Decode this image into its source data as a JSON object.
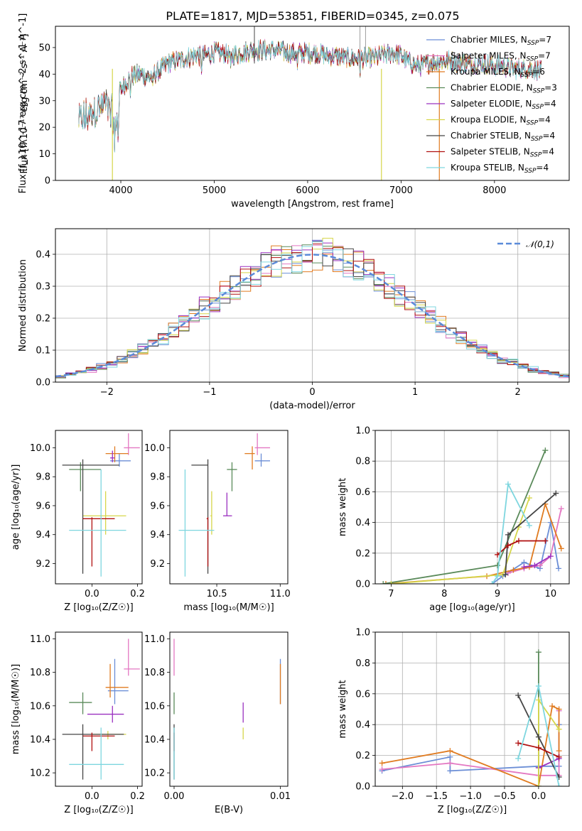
{
  "figure": {
    "title": "PLATE=1817, MJD=53851, FIBERID=0345, z=0.075"
  },
  "chart_data": [
    {
      "id": "spectrum",
      "type": "line",
      "title": "PLATE=1817, MJD=53851, FIBERID=0345, z=0.075",
      "xlabel": "wavelength [Angstrom, rest frame]",
      "ylabel": "Flux [f_λ10^-17 erg cm^-2 s^-1 A^-1]",
      "xlim": [
        3300,
        8800
      ],
      "ylim": [
        0,
        58
      ],
      "xticks": [
        4000,
        5000,
        6000,
        7000,
        8000
      ],
      "yticks": [
        0,
        10,
        20,
        30,
        40,
        50
      ],
      "legend_position": "top-right",
      "grid": false,
      "continuum": {
        "x": [
          3550,
          3650,
          3750,
          3850,
          3950,
          4000,
          4100,
          4200,
          4300,
          4400,
          4500,
          4600,
          4700,
          4800,
          4900,
          5000,
          5100,
          5200,
          5300,
          5400,
          5500,
          5600,
          5700,
          5800,
          5900,
          6000,
          6100,
          6200,
          6300,
          6400,
          6500,
          6600,
          6700,
          6800,
          6900,
          7000,
          7100,
          7200,
          7300,
          7400,
          7500,
          7600,
          7700,
          7800,
          7900,
          8000,
          8100,
          8200,
          8300,
          8400,
          8500
        ],
        "y": [
          22,
          24,
          27,
          29,
          22,
          34,
          39,
          40,
          39,
          41,
          44,
          45,
          46,
          47,
          47,
          48,
          48,
          47,
          48,
          49,
          49,
          49,
          49,
          48,
          48,
          48,
          48,
          47,
          47,
          46,
          46,
          46,
          46,
          47,
          48,
          47,
          44,
          43,
          44,
          45,
          45,
          45,
          44,
          44,
          44,
          43,
          43,
          42,
          42,
          42,
          41
        ]
      },
      "series": [
        {
          "name": "Chabrier MILES, N_SSP=7",
          "color": "#6b8ed6"
        },
        {
          "name": "Salpeter MILES, N_SSP=7",
          "color": "#e377c2"
        },
        {
          "name": "Kroupa MILES, N_SSP=6",
          "color": "#e07b20"
        },
        {
          "name": "Chabrier ELODIE, N_SSP=3",
          "color": "#5a8a5a"
        },
        {
          "name": "Salpeter ELODIE, N_SSP=4",
          "color": "#9b30c0"
        },
        {
          "name": "Kroupa ELODIE, N_SSP=4",
          "color": "#d6d64a"
        },
        {
          "name": "Chabrier STELIB, N_SSP=4",
          "color": "#454545"
        },
        {
          "name": "Salpeter STELIB, N_SSP=4",
          "color": "#b01010"
        },
        {
          "name": "Kroupa STELIB, N_SSP=4",
          "color": "#7ed6df"
        }
      ]
    },
    {
      "id": "residuals",
      "type": "line",
      "xlabel": "(data-model)/error",
      "ylabel": "Normed distribution",
      "xlim": [
        -2.5,
        2.5
      ],
      "ylim": [
        0,
        0.48
      ],
      "xticks": [
        -2,
        -1,
        0,
        1,
        2
      ],
      "yticks": [
        0.0,
        0.1,
        0.2,
        0.3,
        0.4
      ],
      "grid": true,
      "legend_position": "top-right",
      "reference_curve": {
        "name": "𝒩(0,1)",
        "mean": 0,
        "sigma": 1,
        "color": "#5b8bd9"
      },
      "histogram_bins": {
        "start": -2.5,
        "width": 0.1,
        "count": 50
      }
    },
    {
      "id": "age-vs-Z",
      "type": "scatter",
      "xlabel": "Z [log₁₀(Z/Z☉)]",
      "ylabel": "age [log₁₀(age/yr)]",
      "xlim": [
        -0.16,
        0.22
      ],
      "ylim": [
        9.06,
        10.12
      ],
      "xticks": [
        -0.2,
        0.0,
        0.2
      ],
      "yticks": [
        9.2,
        9.4,
        9.6,
        9.8,
        10.0
      ],
      "points": [
        {
          "c": "#6b8ed6",
          "x": 0.12,
          "y": 9.91,
          "xe": [
            0.08,
            0.17
          ],
          "ye": [
            9.87,
            9.96
          ]
        },
        {
          "c": "#e377c2",
          "x": 0.16,
          "y": 10.0,
          "xe": [
            0.14,
            0.21
          ],
          "ye": [
            9.95,
            10.1
          ]
        },
        {
          "c": "#e07b20",
          "x": 0.1,
          "y": 9.96,
          "xe": [
            0.06,
            0.16
          ],
          "ye": [
            9.9,
            10.01
          ]
        },
        {
          "c": "#5a8a5a",
          "x": -0.05,
          "y": 9.85,
          "xe": [
            -0.1,
            0.04
          ],
          "ye": [
            9.7,
            9.9
          ]
        },
        {
          "c": "#9b30c0",
          "x": 0.09,
          "y": 9.93,
          "xe": [
            0.08,
            0.1
          ],
          "ye": [
            9.9,
            9.98
          ]
        },
        {
          "c": "#d6d64a",
          "x": 0.06,
          "y": 9.53,
          "xe": [
            -0.04,
            0.15
          ],
          "ye": [
            9.4,
            9.7
          ]
        },
        {
          "c": "#454545",
          "x": -0.04,
          "y": 9.88,
          "xe": [
            -0.13,
            0.12
          ],
          "ye": [
            9.13,
            9.92
          ]
        },
        {
          "c": "#b01010",
          "x": 0.0,
          "y": 9.51,
          "xe": [
            -0.04,
            0.1
          ],
          "ye": [
            9.18,
            9.52
          ]
        },
        {
          "c": "#7ed6df",
          "x": 0.04,
          "y": 9.43,
          "xe": [
            -0.1,
            0.15
          ],
          "ye": [
            9.11,
            9.85
          ]
        }
      ]
    },
    {
      "id": "age-vs-mass",
      "type": "scatter",
      "xlabel": "mass [log₁₀(M/M☉)]",
      "ylabel": "",
      "xlim": [
        10.13,
        11.06
      ],
      "ylim": [
        9.06,
        10.12
      ],
      "xticks": [
        10.5,
        11.0
      ],
      "yticks": [
        9.2,
        9.4,
        9.6,
        9.8,
        10.0
      ],
      "points": [
        {
          "c": "#6b8ed6",
          "x": 10.85,
          "y": 9.91,
          "xe": [
            10.8,
            10.92
          ],
          "ye": [
            9.87,
            9.96
          ]
        },
        {
          "c": "#e377c2",
          "x": 10.82,
          "y": 10.0,
          "xe": [
            10.8,
            10.92
          ],
          "ye": [
            9.95,
            10.1
          ]
        },
        {
          "c": "#e07b20",
          "x": 10.78,
          "y": 9.96,
          "xe": [
            10.72,
            10.8
          ],
          "ye": [
            9.85,
            10.01
          ]
        },
        {
          "c": "#5a8a5a",
          "x": 10.62,
          "y": 9.85,
          "xe": [
            10.58,
            10.66
          ],
          "ye": [
            9.7,
            9.9
          ]
        },
        {
          "c": "#9b30c0",
          "x": 10.58,
          "y": 9.53,
          "xe": [
            10.55,
            10.62
          ],
          "ye": [
            9.53,
            9.69
          ]
        },
        {
          "c": "#d6d64a",
          "x": 10.46,
          "y": 9.53,
          "xe": [
            10.45,
            10.46
          ],
          "ye": [
            9.4,
            9.7
          ]
        },
        {
          "c": "#454545",
          "x": 10.43,
          "y": 9.88,
          "xe": [
            10.3,
            10.43
          ],
          "ye": [
            9.13,
            9.92
          ]
        },
        {
          "c": "#b01010",
          "x": 10.43,
          "y": 9.51,
          "xe": [
            10.42,
            10.43
          ],
          "ye": [
            9.18,
            9.52
          ]
        },
        {
          "c": "#7ed6df",
          "x": 10.25,
          "y": 9.43,
          "xe": [
            10.2,
            10.48
          ],
          "ye": [
            9.11,
            9.85
          ]
        }
      ]
    },
    {
      "id": "mass-weight-vs-age",
      "type": "line",
      "xlabel": "age [log₁₀(age/yr)]",
      "ylabel": "mass weight",
      "xlim": [
        6.7,
        10.35
      ],
      "ylim": [
        0,
        1.0
      ],
      "xticks": [
        7,
        8,
        9,
        10
      ],
      "yticks": [
        0.0,
        0.2,
        0.4,
        0.6,
        0.8,
        1.0
      ],
      "grid": true,
      "series": [
        {
          "c": "#6b8ed6",
          "x": [
            8.9,
            9.1,
            9.5,
            9.8,
            10.0,
            10.15
          ],
          "y": [
            0.0,
            0.05,
            0.14,
            0.1,
            0.4,
            0.1
          ]
        },
        {
          "c": "#e377c2",
          "x": [
            9.2,
            9.5,
            9.8,
            10.0,
            10.2
          ],
          "y": [
            0.07,
            0.1,
            0.12,
            0.18,
            0.49
          ]
        },
        {
          "c": "#e07b20",
          "x": [
            6.9,
            8.8,
            9.3,
            9.6,
            9.9,
            10.2
          ],
          "y": [
            0.0,
            0.05,
            0.09,
            0.11,
            0.52,
            0.23
          ]
        },
        {
          "c": "#5a8a5a",
          "x": [
            6.85,
            9.0,
            9.9
          ],
          "y": [
            0.0,
            0.12,
            0.87
          ]
        },
        {
          "c": "#9b30c0",
          "x": [
            9.5,
            9.7,
            10.0
          ],
          "y": [
            0.11,
            0.12,
            0.18
          ]
        },
        {
          "c": "#d6d64a",
          "x": [
            7.0,
            9.1,
            9.4,
            9.6
          ],
          "y": [
            0.0,
            0.06,
            0.37,
            0.56
          ]
        },
        {
          "c": "#454545",
          "x": [
            9.15,
            9.2,
            10.1
          ],
          "y": [
            0.06,
            0.32,
            0.59
          ]
        },
        {
          "c": "#b01010",
          "x": [
            9.0,
            9.2,
            9.4,
            9.9
          ],
          "y": [
            0.19,
            0.25,
            0.28,
            0.28
          ]
        },
        {
          "c": "#7ed6df",
          "x": [
            8.9,
            9.0,
            9.2,
            9.6
          ],
          "y": [
            0.0,
            0.05,
            0.65,
            0.38
          ]
        }
      ]
    },
    {
      "id": "mass-vs-Z",
      "type": "scatter",
      "xlabel": "Z [log₁₀(Z/Z☉)]",
      "ylabel": "mass [log₁₀(M/M☉)]",
      "xlim": [
        -0.16,
        0.22
      ],
      "ylim": [
        10.12,
        11.04
      ],
      "xticks": [
        -0.2,
        0.0,
        0.2
      ],
      "yticks": [
        10.2,
        10.4,
        10.6,
        10.8,
        11.0
      ],
      "points": [
        {
          "c": "#6b8ed6",
          "x": 0.1,
          "y": 10.69,
          "xe": [
            0.07,
            0.16
          ],
          "ye": [
            10.61,
            10.88
          ]
        },
        {
          "c": "#e377c2",
          "x": 0.16,
          "y": 10.82,
          "xe": [
            0.14,
            0.21
          ],
          "ye": [
            10.78,
            11.0
          ]
        },
        {
          "c": "#e07b20",
          "x": 0.08,
          "y": 10.71,
          "xe": [
            0.06,
            0.16
          ],
          "ye": [
            10.65,
            10.85
          ]
        },
        {
          "c": "#5a8a5a",
          "x": -0.04,
          "y": 10.62,
          "xe": [
            -0.1,
            0.0
          ],
          "ye": [
            10.55,
            10.68
          ]
        },
        {
          "c": "#9b30c0",
          "x": 0.09,
          "y": 10.55,
          "xe": [
            -0.02,
            0.14
          ],
          "ye": [
            10.5,
            10.6
          ]
        },
        {
          "c": "#d6d64a",
          "x": 0.07,
          "y": 10.43,
          "xe": [
            0.0,
            0.15
          ],
          "ye": [
            10.4,
            10.45
          ]
        },
        {
          "c": "#454545",
          "x": -0.04,
          "y": 10.43,
          "xe": [
            -0.13,
            0.14
          ],
          "ye": [
            10.16,
            10.49
          ]
        },
        {
          "c": "#b01010",
          "x": 0.0,
          "y": 10.42,
          "xe": [
            -0.04,
            0.1
          ],
          "ye": [
            10.33,
            10.44
          ]
        },
        {
          "c": "#7ed6df",
          "x": 0.04,
          "y": 10.25,
          "xe": [
            -0.1,
            0.14
          ],
          "ye": [
            10.16,
            10.47
          ]
        }
      ]
    },
    {
      "id": "mass-vs-EBV",
      "type": "scatter",
      "xlabel": "E(B-V)",
      "ylabel": "",
      "xlim": [
        -0.0004,
        0.0107
      ],
      "ylim": [
        10.12,
        11.04
      ],
      "xticks": [
        0.0,
        0.01
      ],
      "yticks": [
        10.2,
        10.4,
        10.6,
        10.8,
        11.0
      ],
      "points": [
        {
          "c": "#6b8ed6",
          "x": 0.01,
          "y": 10.7,
          "xe": [
            0.01,
            0.01
          ],
          "ye": [
            10.61,
            10.88
          ]
        },
        {
          "c": "#e377c2",
          "x": 0.0,
          "y": 10.82,
          "xe": [
            0.0,
            0.0
          ],
          "ye": [
            10.78,
            11.0
          ]
        },
        {
          "c": "#e07b20",
          "x": 0.01,
          "y": 10.7,
          "xe": [
            0.01,
            0.01
          ],
          "ye": [
            10.61,
            10.85
          ]
        },
        {
          "c": "#5a8a5a",
          "x": 0.0,
          "y": 10.62,
          "xe": [
            0.0,
            0.0
          ],
          "ye": [
            10.55,
            10.68
          ]
        },
        {
          "c": "#9b30c0",
          "x": 0.0065,
          "y": 10.58,
          "xe": [
            0.0065,
            0.0065
          ],
          "ye": [
            10.5,
            10.62
          ]
        },
        {
          "c": "#d6d64a",
          "x": 0.0065,
          "y": 10.43,
          "xe": [
            0.0065,
            0.0065
          ],
          "ye": [
            10.4,
            10.47
          ]
        },
        {
          "c": "#454545",
          "x": 0.0,
          "y": 10.43,
          "xe": [
            0.0,
            0.0
          ],
          "ye": [
            10.16,
            10.49
          ]
        },
        {
          "c": "#b01010",
          "x": 0.0,
          "y": 10.42,
          "xe": [
            0.0,
            0.0
          ],
          "ye": [
            10.33,
            10.44
          ]
        },
        {
          "c": "#7ed6df",
          "x": 0.0,
          "y": 10.25,
          "xe": [
            0.0,
            0.0
          ],
          "ye": [
            10.16,
            10.47
          ]
        }
      ]
    },
    {
      "id": "mass-weight-vs-Z",
      "type": "line",
      "xlabel": "Z [log₁₀(Z/Z☉)]",
      "ylabel": "mass weight",
      "xlim": [
        -2.4,
        0.45
      ],
      "ylim": [
        0,
        1.0
      ],
      "xticks": [
        -2.0,
        -1.5,
        -1.0,
        -0.5,
        0.0
      ],
      "yticks": [
        0.0,
        0.2,
        0.4,
        0.6,
        0.8,
        1.0
      ],
      "grid": true,
      "series": [
        {
          "c": "#6b8ed6",
          "x": [
            -2.3,
            -1.3,
            -1.3,
            0.0,
            0.3,
            0.3
          ],
          "y": [
            0.1,
            0.19,
            0.1,
            0.13,
            0.13,
            0.4
          ]
        },
        {
          "c": "#e377c2",
          "x": [
            -2.3,
            -1.3,
            0.0,
            0.3,
            0.3
          ],
          "y": [
            0.11,
            0.15,
            0.07,
            0.07,
            0.49
          ]
        },
        {
          "c": "#e07b20",
          "x": [
            -2.3,
            -1.3,
            0.0,
            0.2,
            0.3,
            0.3
          ],
          "y": [
            0.15,
            0.23,
            0.0,
            0.52,
            0.5,
            0.23
          ]
        },
        {
          "c": "#5a8a5a",
          "x": [
            0.0,
            0.0,
            0.0
          ],
          "y": [
            0.0,
            0.87,
            0.12
          ]
        },
        {
          "c": "#9b30c0",
          "x": [
            0.0,
            0.3
          ],
          "y": [
            0.12,
            0.18
          ]
        },
        {
          "c": "#d6d64a",
          "x": [
            0.0,
            0.0,
            0.3
          ],
          "y": [
            0.0,
            0.56,
            0.37
          ]
        },
        {
          "c": "#454545",
          "x": [
            -0.3,
            0.0,
            0.3
          ],
          "y": [
            0.59,
            0.32,
            0.06
          ]
        },
        {
          "c": "#b01010",
          "x": [
            -0.3,
            0.0,
            0.3
          ],
          "y": [
            0.28,
            0.25,
            0.19
          ]
        },
        {
          "c": "#7ed6df",
          "x": [
            -0.3,
            0.0,
            0.3
          ],
          "y": [
            0.18,
            0.65,
            0.0
          ]
        }
      ]
    }
  ]
}
